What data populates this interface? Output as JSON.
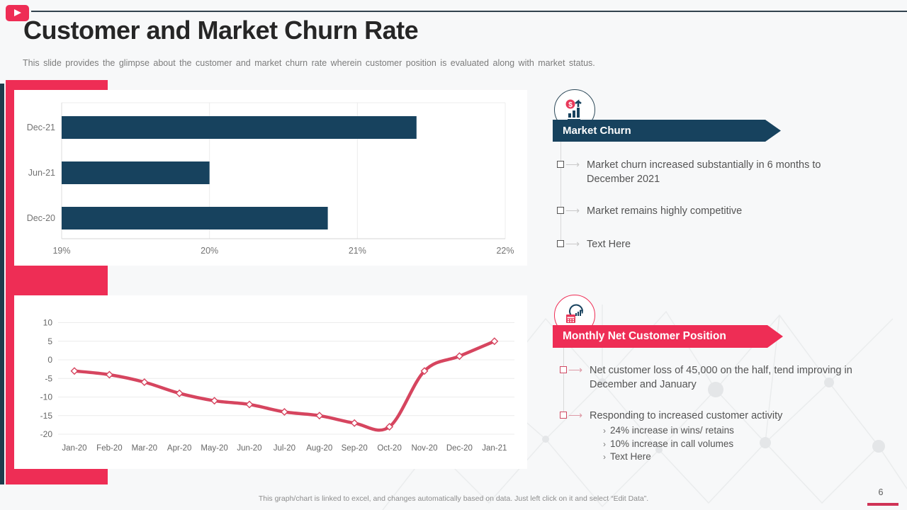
{
  "slide": {
    "title": "Customer and Market Churn Rate",
    "subtitle": "This slide provides  the glimpse about the customer and market churn rate wherein  customer position is evaluated  along with market status.",
    "footer": "This graph/chart is linked to excel,  and changes automatically based on data. Just left click on it and select “Edit Data”.",
    "page_number": "6"
  },
  "colors": {
    "accent_red": "#ee2d55",
    "navy": "#17425e",
    "line_red": "#d6455f",
    "axis_text": "#737373",
    "body_text": "#545454"
  },
  "icons": {
    "header": "play-icon",
    "market_churn": "dollar-growth-icon",
    "net_position": "calendar-chart-icon"
  },
  "sections": {
    "market_churn": {
      "title": "Market Churn",
      "bullets": [
        "Market churn  increased substantially  in 6 months to December 2021",
        "Market remains highly  competitive",
        "Text  Here"
      ]
    },
    "net_position": {
      "title": "Monthly Net Customer Position",
      "bullets": [
        "Net customer loss of 45,000 on the  half,  tend improving in December and January",
        "Responding to increased customer  activity"
      ],
      "sub_bullets": [
        "24% increase in wins/ retains",
        "10% increase in call volumes",
        "Text Here"
      ]
    }
  },
  "chart_data": [
    {
      "type": "bar",
      "orientation": "horizontal",
      "categories": [
        "Dec-21",
        "Jun-21",
        "Dec-20"
      ],
      "values": [
        21.4,
        20.0,
        20.8
      ],
      "value_unit": "%",
      "xlim": [
        19,
        22
      ],
      "xticks": [
        19,
        20,
        21,
        22
      ],
      "xtick_labels": [
        "19%",
        "20%",
        "21%",
        "22%"
      ],
      "bar_color": "#17425e",
      "grid": true,
      "title": "",
      "xlabel": "",
      "ylabel": ""
    },
    {
      "type": "line",
      "x": [
        "Jan-20",
        "Feb-20",
        "Mar-20",
        "Apr-20",
        "May-20",
        "Jun-20",
        "Jul-20",
        "Aug-20",
        "Sep-20",
        "Oct-20",
        "Nov-20",
        "Dec-20",
        "Jan-21"
      ],
      "values": [
        -3,
        -4,
        -6,
        -9,
        -11,
        -12,
        -14,
        -15,
        -17,
        -18,
        -3,
        1,
        5
      ],
      "ylim": [
        -20,
        10
      ],
      "yticks": [
        10,
        5,
        0,
        -5,
        -10,
        -15,
        -20
      ],
      "line_color": "#d6455f",
      "marker": "diamond",
      "smooth": true,
      "grid": true,
      "title": "",
      "xlabel": "",
      "ylabel": ""
    }
  ]
}
